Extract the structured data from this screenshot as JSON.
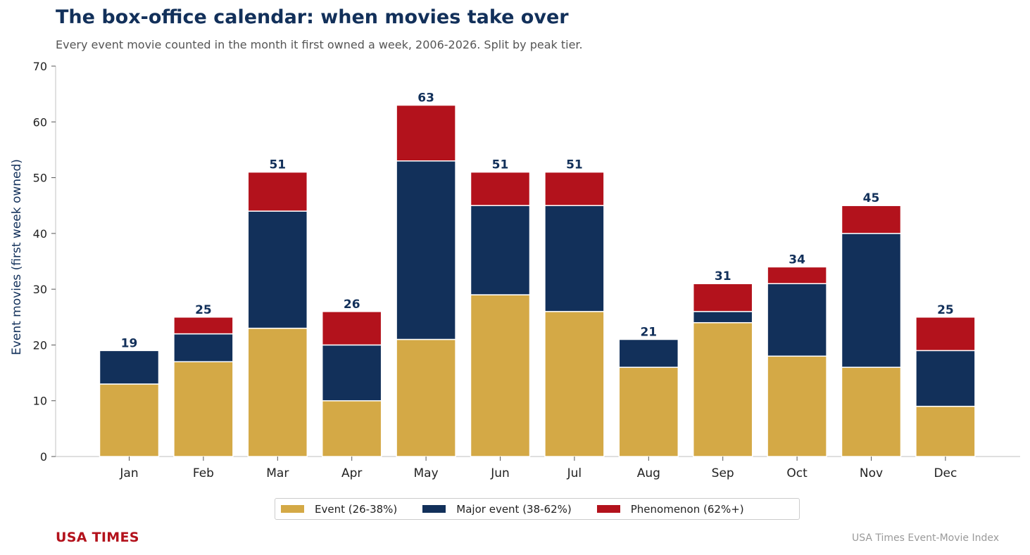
{
  "header": {
    "title": "The box-office calendar: when movies take over",
    "subtitle": "Every event movie counted in the month it first owned a week, 2006-2026. Split by peak tier."
  },
  "footer": {
    "brand": "USA TIMES",
    "source": "USA Times Event-Movie Index"
  },
  "colors": {
    "event": "#d4a946",
    "major": "#12305a",
    "phenomenon": "#b3121c",
    "total_label": "#12305a"
  },
  "chart_data": {
    "type": "bar",
    "stacked": true,
    "title": "The box-office calendar: when movies take over",
    "subtitle": "Every event movie counted in the month it first owned a week, 2006-2026. Split by peak tier.",
    "xlabel": "",
    "ylabel": "Event movies (first week owned)",
    "ylim": [
      0,
      70
    ],
    "yticks": [
      0,
      10,
      20,
      30,
      40,
      50,
      60,
      70
    ],
    "grid": false,
    "legend_position": "bottom-center",
    "categories": [
      "Jan",
      "Feb",
      "Mar",
      "Apr",
      "May",
      "Jun",
      "Jul",
      "Aug",
      "Sep",
      "Oct",
      "Nov",
      "Dec"
    ],
    "series": [
      {
        "name": "Event (26-38%)",
        "values": [
          13,
          17,
          23,
          10,
          21,
          29,
          26,
          16,
          24,
          18,
          16,
          9
        ]
      },
      {
        "name": "Major event (38-62%)",
        "values": [
          6,
          5,
          21,
          10,
          32,
          16,
          19,
          5,
          2,
          13,
          24,
          10
        ]
      },
      {
        "name": "Phenomenon (62%+)",
        "values": [
          0,
          3,
          7,
          6,
          10,
          6,
          6,
          0,
          5,
          3,
          5,
          6
        ]
      }
    ],
    "totals": [
      19,
      25,
      51,
      26,
      63,
      51,
      51,
      21,
      31,
      34,
      45,
      25
    ]
  }
}
